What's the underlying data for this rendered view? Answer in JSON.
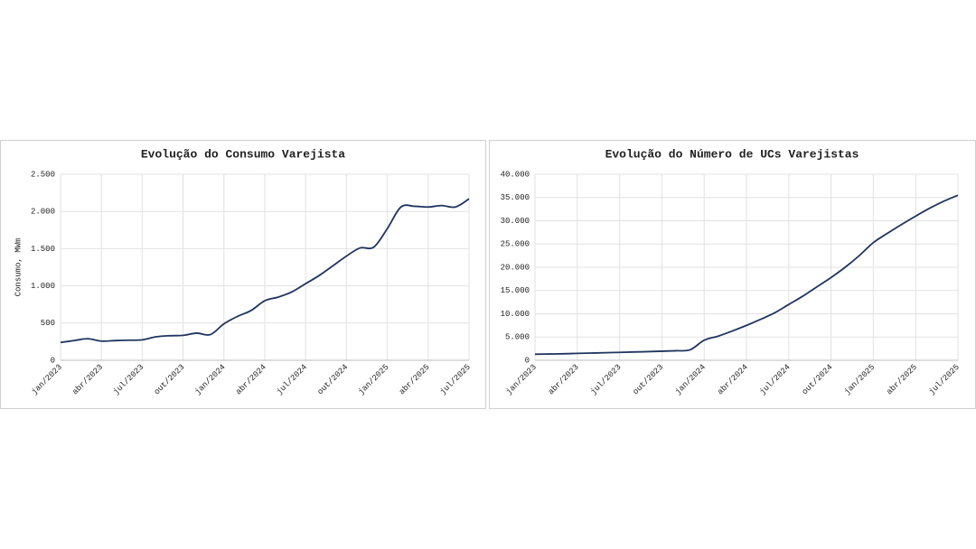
{
  "chart_data": [
    {
      "type": "line",
      "title": "Evolução do Consumo Varejista",
      "ylabel": "Consumo, MWm",
      "categories": [
        "jan/2023",
        null,
        null,
        "abr/2023",
        null,
        null,
        "jul/2023",
        null,
        null,
        "out/2023",
        null,
        null,
        "jan/2024",
        null,
        null,
        "abr/2024",
        null,
        null,
        "jul/2024",
        null,
        null,
        "out/2024",
        null,
        null,
        "jan/2025",
        null,
        null,
        "abr/2025",
        null,
        null,
        "jul/2025"
      ],
      "series": [
        {
          "name": "Consumo",
          "color": "#1f3560",
          "values": [
            240,
            265,
            290,
            258,
            265,
            270,
            275,
            315,
            330,
            335,
            365,
            345,
            490,
            590,
            670,
            800,
            850,
            920,
            1030,
            1140,
            1270,
            1400,
            1510,
            1520,
            1770,
            2060,
            2070,
            2060,
            2080,
            2060,
            2170
          ]
        }
      ],
      "ylim": [
        0,
        2500
      ],
      "yticks": [
        0,
        {
          "value": 500,
          "label": "500"
        },
        {
          "value": 1000,
          "label": "1.000"
        },
        {
          "value": 1500,
          "label": "1.500"
        },
        {
          "value": 2000,
          "label": "2.000"
        },
        {
          "value": 2500,
          "label": "2.500"
        }
      ],
      "grid": true
    },
    {
      "type": "line",
      "title": "Evolução do Número de UCs Varejistas",
      "categories": [
        "jan/2023",
        null,
        null,
        "abr/2023",
        null,
        null,
        "jul/2023",
        null,
        null,
        "out/2023",
        null,
        null,
        "jan/2024",
        null,
        null,
        "abr/2024",
        null,
        null,
        "jul/2024",
        null,
        null,
        "out/2024",
        null,
        null,
        "jan/2025",
        null,
        null,
        "abr/2025",
        null,
        null,
        "jul/2025"
      ],
      "series": [
        {
          "name": "UCs",
          "color": "#1f3560",
          "values": [
            1300,
            1350,
            1400,
            1480,
            1550,
            1620,
            1700,
            1780,
            1860,
            1950,
            2050,
            2250,
            4300,
            5200,
            6300,
            7500,
            8800,
            10200,
            12000,
            13800,
            15800,
            17800,
            20000,
            22500,
            25300,
            27300,
            29200,
            31000,
            32700,
            34200,
            35500
          ]
        }
      ],
      "ylim": [
        0,
        40000
      ],
      "yticks": [
        0,
        {
          "value": 5000,
          "label": "5.000"
        },
        {
          "value": 10000,
          "label": "10.000"
        },
        {
          "value": 15000,
          "label": "15.000"
        },
        {
          "value": 20000,
          "label": "20.000"
        },
        {
          "value": 25000,
          "label": "25.000"
        },
        {
          "value": 30000,
          "label": "30.000"
        },
        {
          "value": 35000,
          "label": "35.000"
        },
        {
          "value": 40000,
          "label": "40.000"
        }
      ],
      "grid": true
    }
  ]
}
